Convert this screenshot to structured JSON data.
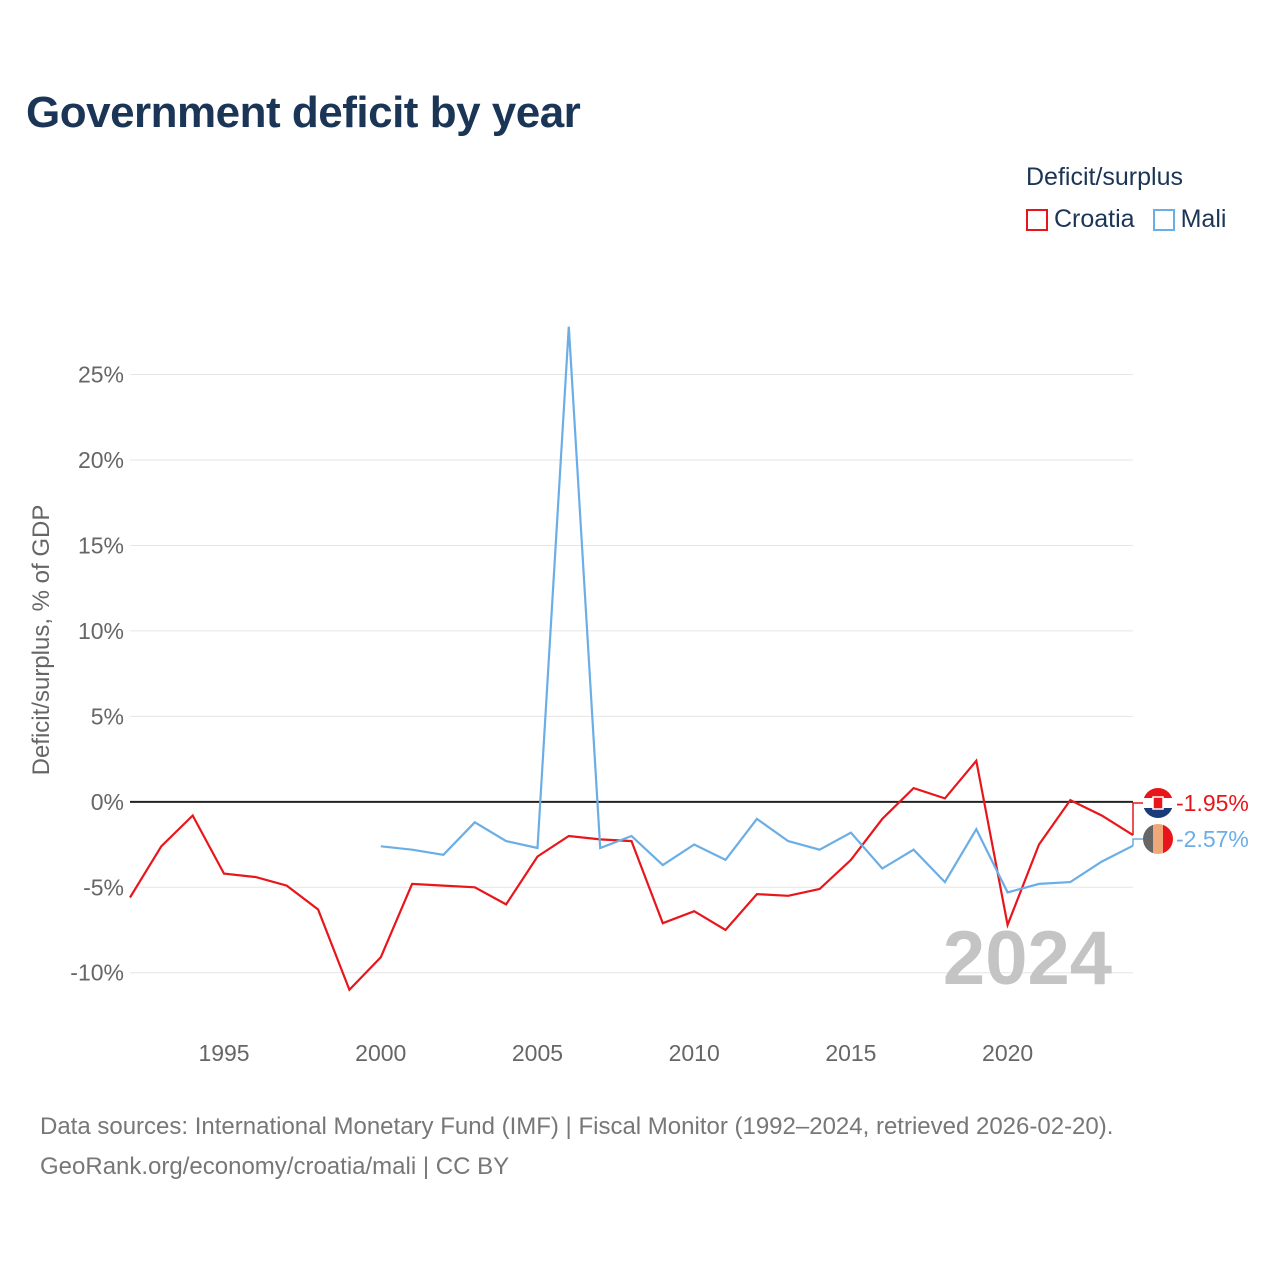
{
  "chart_data": {
    "type": "line",
    "title": "Government deficit by year",
    "xlabel": "",
    "ylabel": "Deficit/surplus, % of GDP",
    "xlim": [
      1992,
      2024
    ],
    "ylim": [
      -13,
      31
    ],
    "yticks": [
      -10,
      -5,
      0,
      5,
      10,
      15,
      20,
      25
    ],
    "ytick_labels": [
      "-10%",
      "-5%",
      "0%",
      "5%",
      "10%",
      "15%",
      "20%",
      "25%"
    ],
    "xticks": [
      1995,
      2000,
      2005,
      2010,
      2015,
      2020
    ],
    "xtick_labels": [
      "1995",
      "2000",
      "2005",
      "2010",
      "2015",
      "2020"
    ],
    "legend_title": "Deficit/surplus",
    "legend_position": "top-right",
    "year_watermark": "2024",
    "series": [
      {
        "name": "Croatia",
        "color": "#e8161b",
        "end_label": "-1.95%",
        "x": [
          1992,
          1993,
          1994,
          1995,
          1996,
          1997,
          1998,
          1999,
          2000,
          2001,
          2002,
          2003,
          2004,
          2005,
          2006,
          2007,
          2008,
          2009,
          2010,
          2011,
          2012,
          2013,
          2014,
          2015,
          2016,
          2017,
          2018,
          2019,
          2020,
          2021,
          2022,
          2023,
          2024
        ],
        "values": [
          -5.6,
          -2.6,
          -0.8,
          -4.2,
          -4.4,
          -4.9,
          -6.3,
          -11.0,
          -9.1,
          -4.8,
          -4.9,
          -5.0,
          -6.0,
          -3.2,
          -2.0,
          -2.2,
          -2.3,
          -7.1,
          -6.4,
          -7.5,
          -5.4,
          -5.5,
          -5.1,
          -3.4,
          -1.0,
          0.8,
          0.2,
          2.4,
          -7.2,
          -2.5,
          0.1,
          -0.8,
          -1.95
        ]
      },
      {
        "name": "Mali",
        "color": "#6baee6",
        "end_label": "-2.57%",
        "x": [
          2000,
          2001,
          2002,
          2003,
          2004,
          2005,
          2006,
          2007,
          2008,
          2009,
          2010,
          2011,
          2012,
          2013,
          2014,
          2015,
          2016,
          2017,
          2018,
          2019,
          2020,
          2021,
          2022,
          2023,
          2024
        ],
        "values": [
          -2.6,
          -2.8,
          -3.1,
          -1.2,
          -2.3,
          -2.7,
          27.8,
          -2.7,
          -2.0,
          -3.7,
          -2.5,
          -3.4,
          -1.0,
          -2.3,
          -2.8,
          -1.8,
          -3.9,
          -2.8,
          -4.7,
          -1.6,
          -5.3,
          -4.8,
          -4.7,
          -3.5,
          -2.57
        ]
      }
    ]
  },
  "source": {
    "line1": "Data sources: International Monetary Fund (IMF) | Fiscal Monitor (1992–2024, retrieved 2026-02-20).",
    "line2": "GeoRank.org/economy/croatia/mali | CC BY"
  }
}
